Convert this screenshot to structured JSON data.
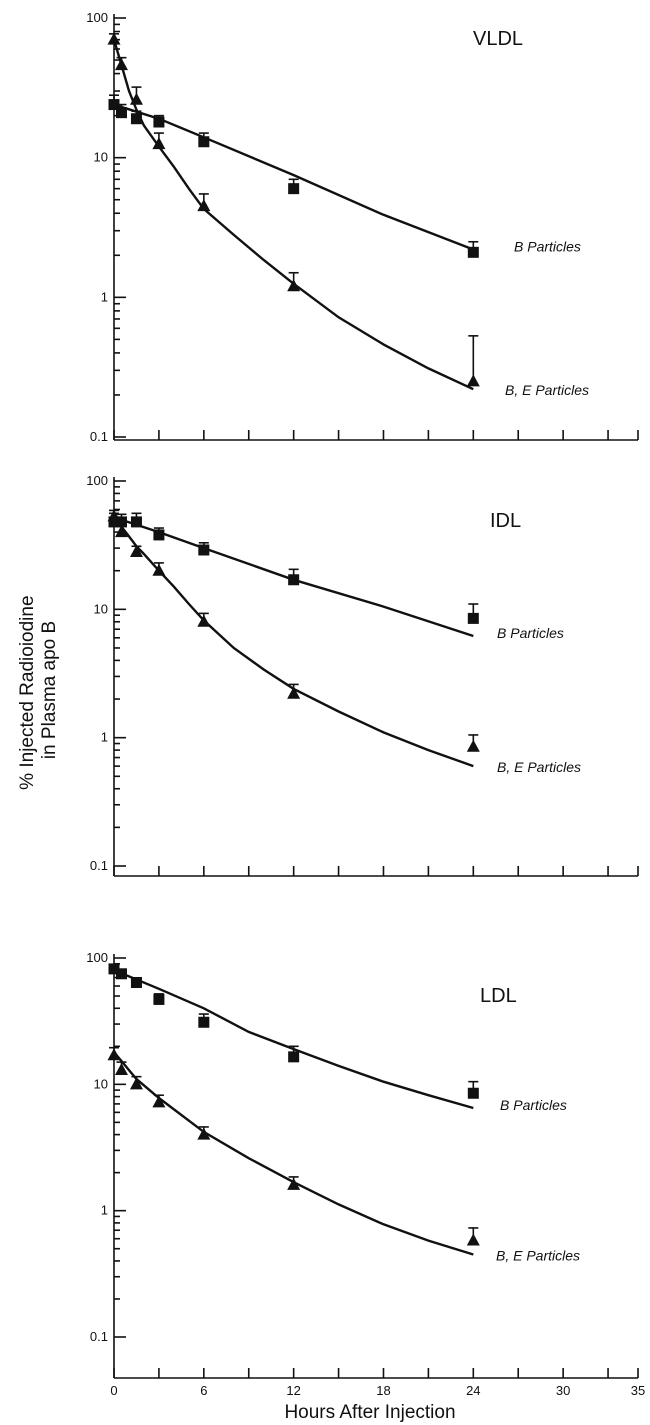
{
  "chart_data": {
    "type": "line",
    "ylabel": "% Injected Radioiodine in Plasma apo B",
    "ylabel_lines": [
      "% Injected Radioiodine",
      "in Plasma apo B"
    ],
    "xlabel": "Hours After Injection",
    "x_scale": "linear",
    "y_scale": "log",
    "xlim": [
      0,
      35
    ],
    "ylim": [
      0.1,
      100
    ],
    "x_ticks": [
      0,
      6,
      12,
      18,
      24,
      30,
      35
    ],
    "y_ticks": [
      100,
      10,
      1,
      0.1
    ],
    "y_tick_labels": [
      "100",
      "10",
      "1",
      "0.1"
    ],
    "grid": false,
    "legend": "inline labels",
    "panels": [
      {
        "title": "VLDL",
        "series": [
          {
            "name": "B Particles",
            "marker": "square",
            "x": [
              0,
              0.5,
              1.5,
              3,
              6,
              12,
              24
            ],
            "y": [
              24,
              21,
              19,
              18,
              13,
              6,
              2.1
            ],
            "error": [
              4,
              3,
              2.5,
              2,
              2,
              1,
              0.4
            ],
            "fit_x": [
              0,
              3,
              6,
              12,
              18,
              24
            ],
            "fit_y": [
              24,
              19,
              14,
              7.5,
              3.9,
              2.2
            ]
          },
          {
            "name": "B, E Particles",
            "marker": "triangle",
            "x": [
              0,
              0.5,
              1.5,
              3,
              6,
              12,
              24
            ],
            "y": [
              70,
              46,
              26,
              12.5,
              4.5,
              1.2,
              0.25
            ],
            "error": [
              7,
              6,
              6,
              2.5,
              1,
              0.3,
              0.28
            ],
            "fit_x": [
              0,
              0.5,
              1,
              1.5,
              2,
              3,
              4,
              5,
              6,
              8,
              10,
              12,
              15,
              18,
              21,
              24
            ],
            "fit_y": [
              70,
              46,
              30,
              22,
              17,
              12,
              8.6,
              6,
              4.3,
              2.8,
              1.85,
              1.25,
              0.72,
              0.46,
              0.31,
              0.22
            ]
          }
        ]
      },
      {
        "title": "IDL",
        "series": [
          {
            "name": "B Particles",
            "marker": "square",
            "x": [
              0,
              0.5,
              1.5,
              3,
              6,
              12,
              24
            ],
            "y": [
              48,
              48,
              48,
              38,
              29,
              17,
              8.5
            ],
            "error": [
              8,
              7,
              8,
              5,
              4,
              3.5,
              2.5
            ],
            "fit_x": [
              0,
              3,
              6,
              12,
              18,
              24
            ],
            "fit_y": [
              52,
              40,
              30,
              17,
              10.5,
              6.2
            ]
          },
          {
            "name": "B, E Particles",
            "marker": "triangle",
            "x": [
              0,
              0.5,
              1.5,
              3,
              6,
              12,
              24
            ],
            "y": [
              53,
              40,
              28,
              20,
              8,
              2.2,
              0.85
            ],
            "error": [
              6,
              5,
              3,
              3,
              1.3,
              0.4,
              0.2
            ],
            "fit_x": [
              0,
              0.5,
              1,
              1.5,
              2,
              3,
              4,
              5,
              6,
              8,
              10,
              12,
              15,
              18,
              21,
              24
            ],
            "fit_y": [
              56,
              44,
              37,
              31,
              27,
              20,
              15,
              11,
              8.2,
              5,
              3.4,
              2.4,
              1.6,
              1.1,
              0.8,
              0.6
            ]
          }
        ]
      },
      {
        "title": "LDL",
        "series": [
          {
            "name": "B Particles",
            "marker": "square",
            "x": [
              0,
              0.5,
              1.5,
              3,
              6,
              12,
              24
            ],
            "y": [
              82,
              75,
              64,
              47,
              31,
              16.5,
              8.5
            ],
            "error": [
              6,
              6,
              5,
              5,
              5,
              3.5,
              2
            ],
            "fit_x": [
              0,
              3,
              6,
              9,
              12,
              15,
              18,
              21,
              24
            ],
            "fit_y": [
              80,
              57,
              40,
              26,
              19,
              14,
              10.5,
              8.2,
              6.5
            ]
          },
          {
            "name": "B, E Particles",
            "marker": "triangle",
            "x": [
              0,
              0.5,
              1.5,
              3,
              6,
              12,
              24
            ],
            "y": [
              17,
              13,
              10,
              7.2,
              4,
              1.6,
              0.58
            ],
            "error": [
              2.5,
              2,
              1.5,
              1,
              0.6,
              0.25,
              0.15
            ],
            "fit_x": [
              0,
              1.5,
              3,
              6,
              9,
              12,
              15,
              18,
              21,
              24
            ],
            "fit_y": [
              18,
              11,
              7.8,
              4.2,
              2.6,
              1.68,
              1.12,
              0.78,
              0.58,
              0.45
            ]
          }
        ]
      }
    ]
  }
}
